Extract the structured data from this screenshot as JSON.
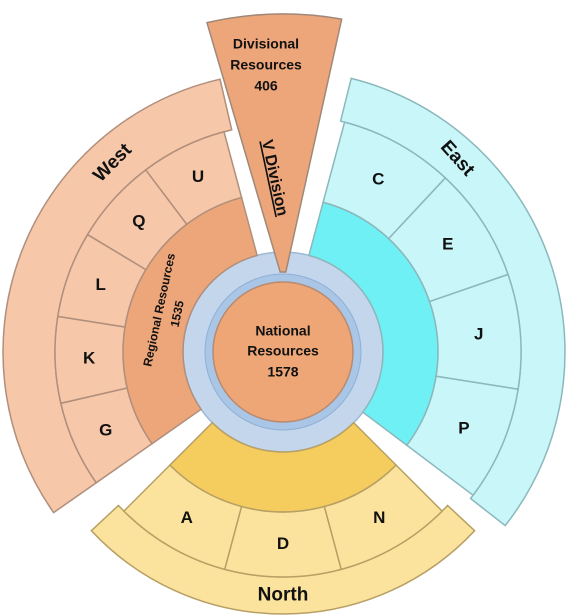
{
  "national": {
    "label_lines": [
      "National",
      "Resources"
    ],
    "value": 1578
  },
  "regional": {
    "label": "Regional Resources",
    "value": 1535
  },
  "divisional": {
    "label_lines": [
      "Divisional",
      "Resources"
    ],
    "value": 406
  },
  "division_label": "V Division",
  "regions": [
    {
      "name": "West",
      "cells": [
        "G",
        "K",
        "L",
        "Q",
        "U"
      ]
    },
    {
      "name": "East",
      "cells": [
        "C",
        "E",
        "J",
        "P"
      ]
    },
    {
      "name": "North",
      "cells": [
        "A",
        "D",
        "N"
      ]
    }
  ]
}
